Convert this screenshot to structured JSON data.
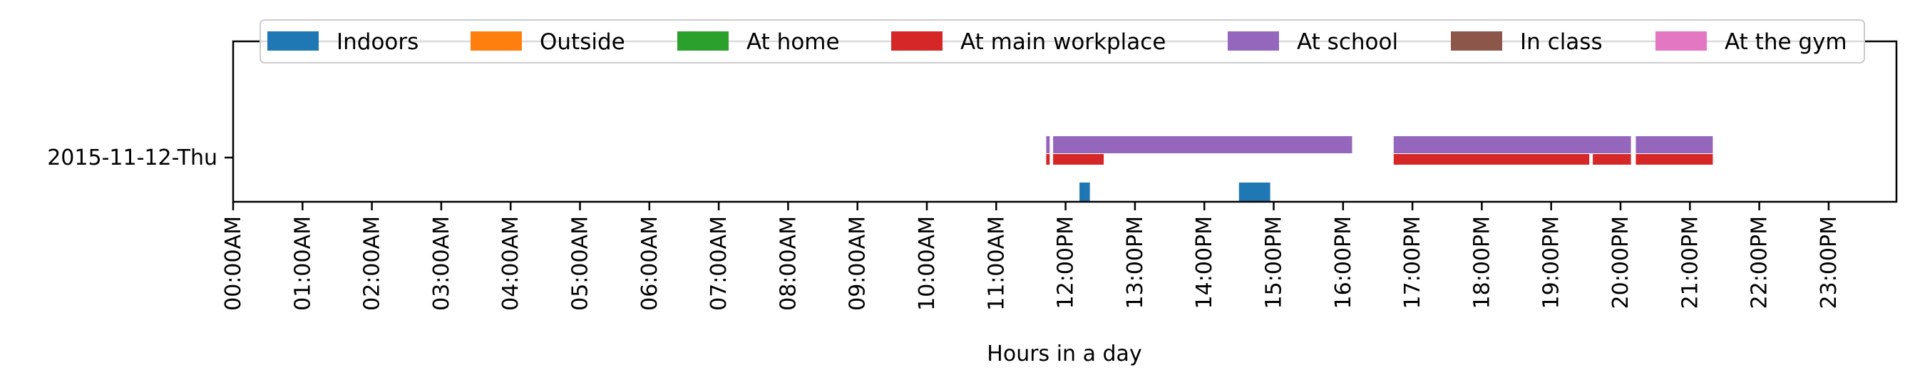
{
  "chart_data": {
    "type": "timeline",
    "xlabel": "Hours in a day",
    "ylabel": "",
    "xlim_hours": [
      0,
      24
    ],
    "xticks": [
      "00:00AM",
      "01:00AM",
      "02:00AM",
      "03:00AM",
      "04:00AM",
      "05:00AM",
      "06:00AM",
      "07:00AM",
      "08:00AM",
      "09:00AM",
      "10:00AM",
      "11:00AM",
      "12:00PM",
      "13:00PM",
      "14:00PM",
      "15:00PM",
      "16:00PM",
      "17:00PM",
      "18:00PM",
      "19:00PM",
      "20:00PM",
      "21:00PM",
      "22:00PM",
      "23:00PM"
    ],
    "rows": [
      "2015-11-12-Thu"
    ],
    "legend_position": "top",
    "grid": false,
    "series": [
      {
        "name": "Indoors",
        "color": "#1f77b4",
        "lane": 0,
        "intervals": [
          [
            12.2,
            12.35
          ],
          [
            14.5,
            14.95
          ]
        ]
      },
      {
        "name": "Outside",
        "color": "#ff7f0e",
        "lane": 1,
        "intervals": []
      },
      {
        "name": "At home",
        "color": "#2ca02c",
        "lane": 2,
        "intervals": []
      },
      {
        "name": "At main workplace",
        "color": "#d62728",
        "lane": 3,
        "intervals": [
          [
            11.72,
            11.77
          ],
          [
            11.82,
            12.55
          ],
          [
            16.73,
            19.55
          ],
          [
            19.6,
            20.15
          ],
          [
            20.22,
            21.33
          ]
        ]
      },
      {
        "name": "At school",
        "color": "#9467bd",
        "lane": 4,
        "intervals": [
          [
            11.72,
            11.77
          ],
          [
            11.82,
            16.13
          ],
          [
            16.73,
            20.15
          ],
          [
            20.22,
            21.33
          ]
        ]
      },
      {
        "name": "In class",
        "color": "#8c564b",
        "lane": 5,
        "intervals": []
      },
      {
        "name": "At the gym",
        "color": "#e377c2",
        "lane": 6,
        "intervals": []
      }
    ]
  }
}
